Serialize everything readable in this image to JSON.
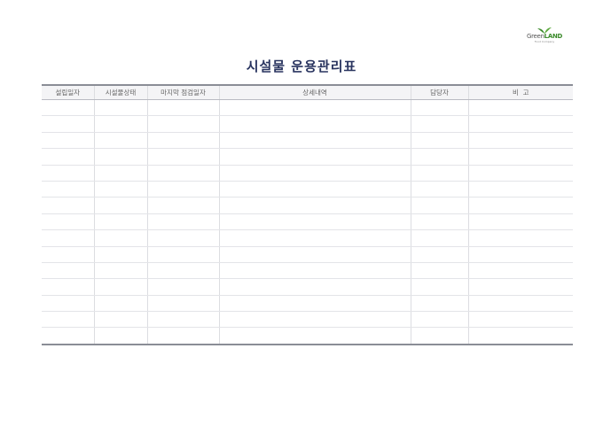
{
  "logo": {
    "text_green": "Green",
    "text_land": "LAND",
    "subtitle": "Food Company",
    "leaf_color": "#3a8a2a"
  },
  "title": "시설물 운용관리표",
  "table": {
    "columns": [
      "설립일자",
      "시설물상태",
      "마지막 점검일자",
      "상세내역",
      "담당자",
      "비  고"
    ],
    "rows": [
      [
        "",
        "",
        "",
        "",
        "",
        ""
      ],
      [
        "",
        "",
        "",
        "",
        "",
        ""
      ],
      [
        "",
        "",
        "",
        "",
        "",
        ""
      ],
      [
        "",
        "",
        "",
        "",
        "",
        ""
      ],
      [
        "",
        "",
        "",
        "",
        "",
        ""
      ],
      [
        "",
        "",
        "",
        "",
        "",
        ""
      ],
      [
        "",
        "",
        "",
        "",
        "",
        ""
      ],
      [
        "",
        "",
        "",
        "",
        "",
        ""
      ],
      [
        "",
        "",
        "",
        "",
        "",
        ""
      ],
      [
        "",
        "",
        "",
        "",
        "",
        ""
      ],
      [
        "",
        "",
        "",
        "",
        "",
        ""
      ],
      [
        "",
        "",
        "",
        "",
        "",
        ""
      ],
      [
        "",
        "",
        "",
        "",
        "",
        ""
      ],
      [
        "",
        "",
        "",
        "",
        "",
        ""
      ],
      [
        "",
        "",
        "",
        "",
        "",
        ""
      ]
    ]
  }
}
